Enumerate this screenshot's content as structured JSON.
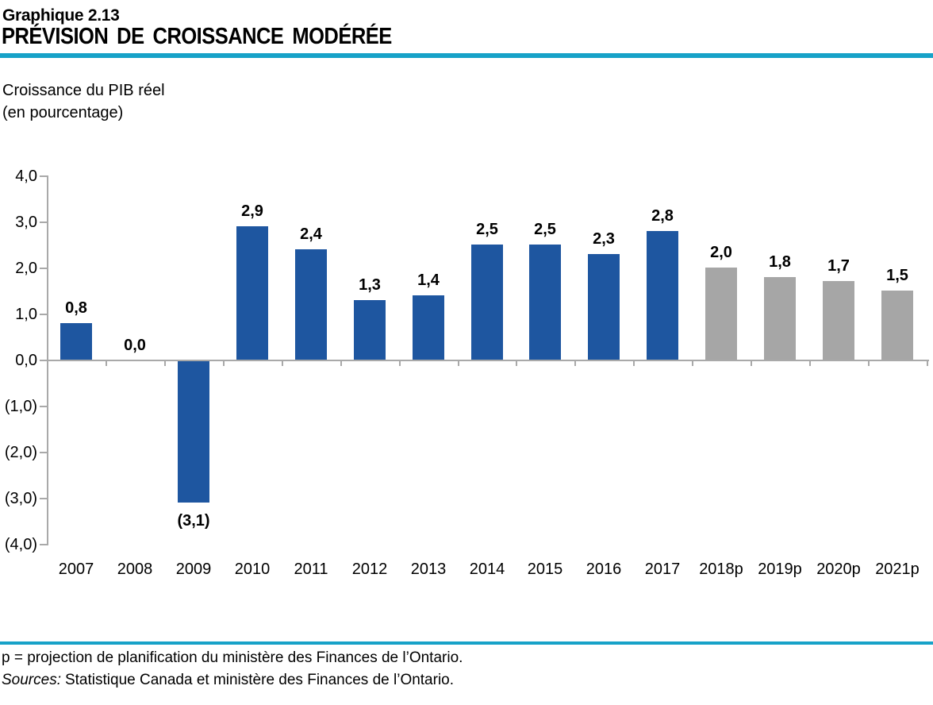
{
  "header": {
    "chart_number": "Graphique 2.13",
    "title": "PRÉVISION DE CROISSANCE MODÉRÉE",
    "subtitle_line1": "Croissance du PIB réel",
    "subtitle_line2": "(en pourcentage)"
  },
  "colors": {
    "accent_rule": "#17a2c8",
    "bar_actual": "#1e56a0",
    "bar_projection": "#a6a6a6",
    "axis_gray": "#a9a9a9",
    "text": "#000000"
  },
  "chart_data": {
    "type": "bar",
    "title": "PRÉVISION DE CROISSANCE MODÉRÉE",
    "ylabel": "Croissance du PIB réel (en pourcentage)",
    "categories": [
      "2007",
      "2008",
      "2009",
      "2010",
      "2011",
      "2012",
      "2013",
      "2014",
      "2015",
      "2016",
      "2017",
      "2018p",
      "2019p",
      "2020p",
      "2021p"
    ],
    "values": [
      0.8,
      0.0,
      -3.1,
      2.9,
      2.4,
      1.3,
      1.4,
      2.5,
      2.5,
      2.3,
      2.8,
      2.0,
      1.8,
      1.7,
      1.5
    ],
    "value_labels": [
      "0,8",
      "0,0",
      "(3,1)",
      "2,9",
      "2,4",
      "1,3",
      "1,4",
      "2,5",
      "2,5",
      "2,3",
      "2,8",
      "2,0",
      "1,8",
      "1,7",
      "1,5"
    ],
    "projection_start_index": 11,
    "bar_color_actual": "#1e56a0",
    "bar_color_projection": "#a6a6a6",
    "y_ticks": [
      4,
      3,
      2,
      1,
      0,
      -1,
      -2,
      -3,
      -4
    ],
    "y_tick_labels": [
      "4,0",
      "3,0",
      "2,0",
      "1,0",
      "0,0",
      "(1,0)",
      "(2,0)",
      "(3,0)",
      "(4,0)"
    ],
    "ylim": [
      -4,
      4
    ],
    "grid": false,
    "legend": "none"
  },
  "footer": {
    "note": "p = projection de planification du ministère des Finances de l’Ontario.",
    "sources_label": "Sources:",
    "sources_text": "Statistique Canada et ministère des Finances de l’Ontario."
  }
}
